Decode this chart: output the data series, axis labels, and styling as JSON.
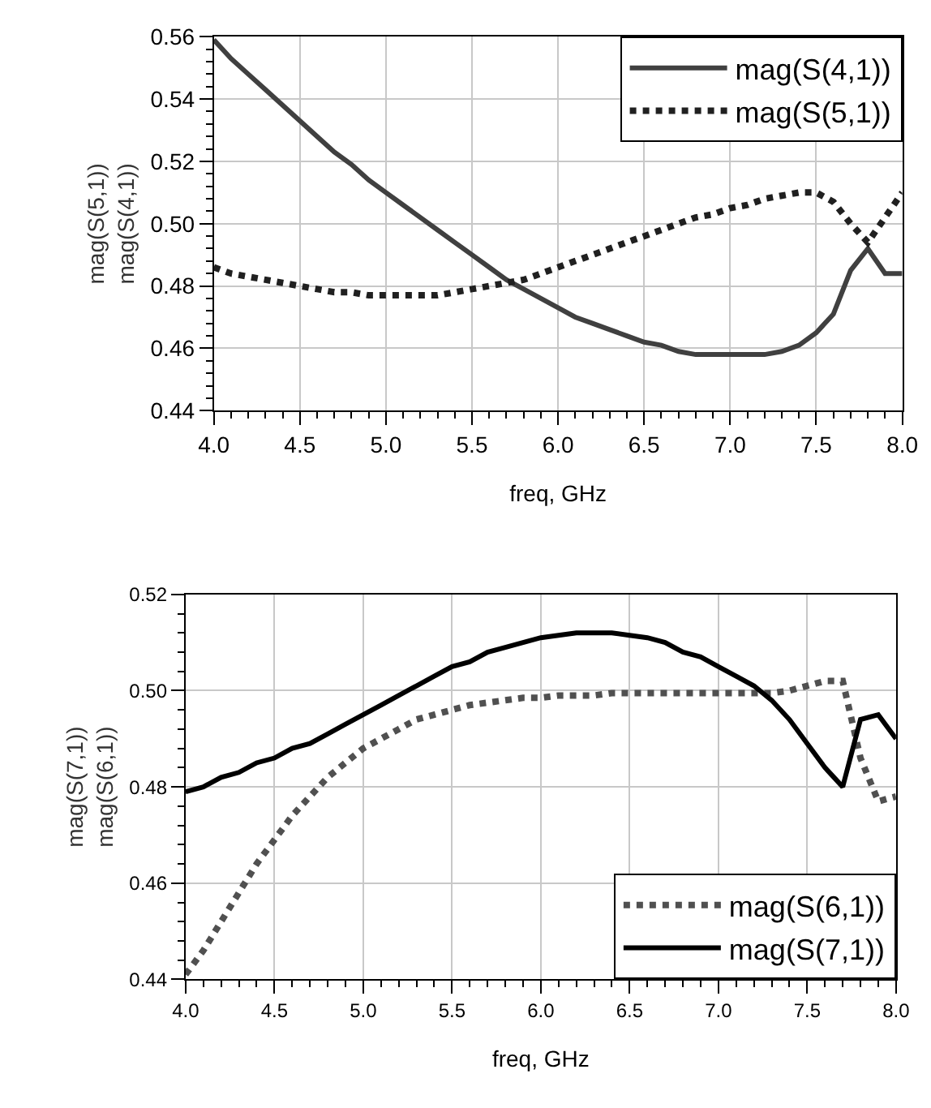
{
  "chart_data": [
    {
      "type": "line",
      "xlabel": "freq, GHz",
      "ylabel": "mag(S(5,1))\nmag(S(4,1))",
      "x": [
        4.0,
        4.1,
        4.2,
        4.3,
        4.4,
        4.5,
        4.6,
        4.7,
        4.8,
        4.9,
        5.0,
        5.1,
        5.2,
        5.3,
        5.4,
        5.5,
        5.6,
        5.7,
        5.8,
        5.9,
        6.0,
        6.1,
        6.2,
        6.3,
        6.4,
        6.5,
        6.6,
        6.7,
        6.8,
        6.9,
        7.0,
        7.1,
        7.2,
        7.3,
        7.4,
        7.5,
        7.6,
        7.7,
        7.8,
        7.9,
        8.0
      ],
      "series": [
        {
          "name": "mag(S(4,1))",
          "color": "#404040",
          "line_style": "solid",
          "values": [
            0.559,
            0.553,
            0.548,
            0.543,
            0.538,
            0.533,
            0.528,
            0.523,
            0.519,
            0.514,
            0.51,
            0.506,
            0.502,
            0.498,
            0.494,
            0.49,
            0.486,
            0.482,
            0.479,
            0.476,
            0.473,
            0.47,
            0.468,
            0.466,
            0.464,
            0.462,
            0.461,
            0.459,
            0.458,
            0.458,
            0.458,
            0.458,
            0.458,
            0.459,
            0.461,
            0.465,
            0.471,
            0.485,
            0.492,
            0.484,
            0.484
          ]
        },
        {
          "name": "mag(S(5,1))",
          "color": "#202020",
          "line_style": "dotted",
          "values": [
            0.486,
            0.484,
            0.483,
            0.482,
            0.481,
            0.48,
            0.479,
            0.478,
            0.478,
            0.477,
            0.477,
            0.477,
            0.477,
            0.477,
            0.478,
            0.479,
            0.48,
            0.481,
            0.482,
            0.484,
            0.486,
            0.488,
            0.49,
            0.492,
            0.494,
            0.496,
            0.498,
            0.5,
            0.502,
            0.503,
            0.505,
            0.506,
            0.508,
            0.509,
            0.51,
            0.51,
            0.507,
            0.5,
            0.494,
            0.502,
            0.51
          ]
        }
      ],
      "xlim": [
        4.0,
        8.0
      ],
      "xticks": [
        {
          "value": 4.0,
          "label": "4.0"
        },
        4.5,
        {
          "value": 5.0,
          "label": "5.0"
        },
        5.5,
        {
          "value": 6.0,
          "label": "6.0"
        },
        6.5,
        {
          "value": 7.0,
          "label": "7.0"
        },
        7.5,
        {
          "value": 8.0,
          "label": "8.0"
        }
      ],
      "ylim": [
        0.44,
        0.56
      ],
      "yticks": [
        0.44,
        0.46,
        0.48,
        {
          "value": 0.5,
          "label": "0.50"
        },
        0.52,
        0.54,
        0.56
      ],
      "grid": true,
      "legend": "top right"
    },
    {
      "type": "line",
      "xlabel": "freq, GHz",
      "ylabel": "mag(S(7,1))\nmag(S(6,1))",
      "x": [
        4.0,
        4.1,
        4.2,
        4.3,
        4.4,
        4.5,
        4.6,
        4.7,
        4.8,
        4.9,
        5.0,
        5.1,
        5.2,
        5.3,
        5.4,
        5.5,
        5.6,
        5.7,
        5.8,
        5.9,
        6.0,
        6.1,
        6.2,
        6.3,
        6.4,
        6.5,
        6.6,
        6.7,
        6.8,
        6.9,
        7.0,
        7.1,
        7.2,
        7.3,
        7.4,
        7.5,
        7.6,
        7.7,
        7.8,
        7.9,
        8.0
      ],
      "series": [
        {
          "name": "mag(S(6,1))",
          "color": "#505050",
          "line_style": "dotted",
          "values": [
            0.441,
            0.446,
            0.452,
            0.458,
            0.464,
            0.469,
            0.474,
            0.478,
            0.482,
            0.485,
            0.488,
            0.49,
            0.492,
            0.494,
            0.495,
            0.496,
            0.497,
            0.4975,
            0.498,
            0.4985,
            0.4985,
            0.499,
            0.499,
            0.499,
            0.4995,
            0.4995,
            0.4995,
            0.4995,
            0.4995,
            0.4995,
            0.4995,
            0.4995,
            0.4995,
            0.4995,
            0.5,
            0.501,
            0.502,
            0.502,
            0.486,
            0.477,
            0.478
          ]
        },
        {
          "name": "mag(S(7,1))",
          "color": "#000000",
          "line_style": "solid",
          "values": [
            0.479,
            0.48,
            0.482,
            0.483,
            0.485,
            0.486,
            0.488,
            0.489,
            0.491,
            0.493,
            0.495,
            0.497,
            0.499,
            0.501,
            0.503,
            0.505,
            0.506,
            0.508,
            0.509,
            0.51,
            0.511,
            0.5115,
            0.512,
            0.512,
            0.512,
            0.5115,
            0.511,
            0.51,
            0.508,
            0.507,
            0.505,
            0.503,
            0.501,
            0.498,
            0.494,
            0.489,
            0.484,
            0.48,
            0.494,
            0.495,
            0.49
          ]
        }
      ],
      "xlim": [
        4.0,
        8.0
      ],
      "xticks": [
        {
          "value": 4.0,
          "label": "4.0"
        },
        4.5,
        {
          "value": 5.0,
          "label": "5.0"
        },
        5.5,
        {
          "value": 6.0,
          "label": "6.0"
        },
        6.5,
        {
          "value": 7.0,
          "label": "7.0"
        },
        7.5,
        {
          "value": 8.0,
          "label": "8.0"
        }
      ],
      "ylim": [
        0.44,
        0.52
      ],
      "yticks": [
        0.44,
        0.46,
        0.48,
        {
          "value": 0.5,
          "label": "0.50"
        },
        0.52
      ],
      "grid": true,
      "legend": "bottom right"
    }
  ]
}
